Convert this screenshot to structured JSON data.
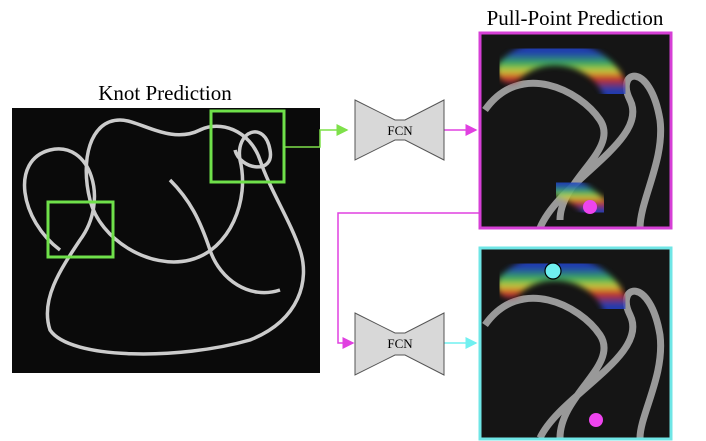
{
  "knot_panel": {
    "title": "Knot Prediction"
  },
  "pull_panel": {
    "title": "Pull-Point Prediction"
  },
  "networks": [
    {
      "label": "FCN"
    },
    {
      "label": "FCN"
    }
  ]
}
